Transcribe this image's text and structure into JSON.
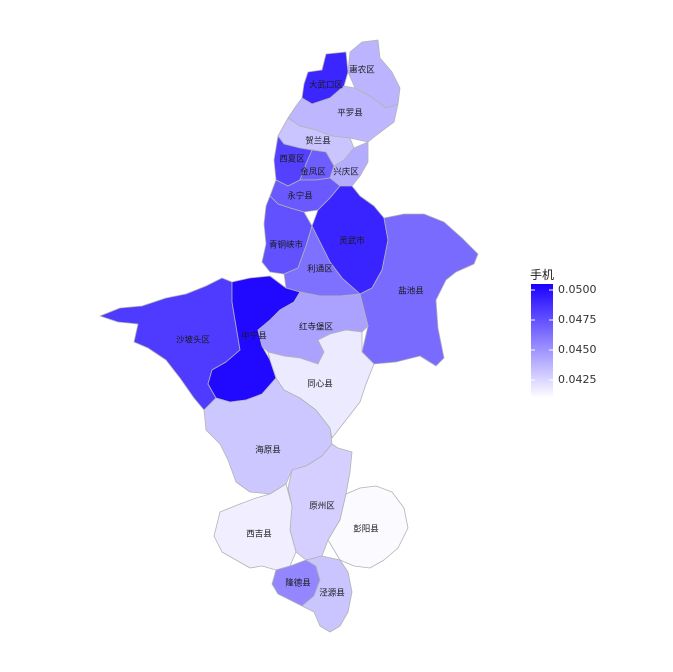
{
  "legend": {
    "title": "手机",
    "ticks": [
      "0.0500",
      "0.0475",
      "0.0450",
      "0.0425"
    ],
    "color_high": "#1a00ff",
    "color_low": "#ffffff"
  },
  "regions": [
    {
      "id": "huinong",
      "name": "惠农区",
      "value": 0.0438
    },
    {
      "id": "dawukou",
      "name": "大武口区",
      "value": 0.0491
    },
    {
      "id": "pingluo",
      "name": "平罗县",
      "value": 0.0437
    },
    {
      "id": "helan",
      "name": "贺兰县",
      "value": 0.0432
    },
    {
      "id": "xixia",
      "name": "西夏区",
      "value": 0.0481
    },
    {
      "id": "jinfeng",
      "name": "金凤区",
      "value": 0.047
    },
    {
      "id": "xingqing",
      "name": "兴庆区",
      "value": 0.0441
    },
    {
      "id": "yongning",
      "name": "永宁县",
      "value": 0.0472
    },
    {
      "id": "qingtongxia",
      "name": "青铜峡市",
      "value": 0.0475
    },
    {
      "id": "lingwu",
      "name": "灵武市",
      "value": 0.0492
    },
    {
      "id": "litong",
      "name": "利通区",
      "value": 0.0463
    },
    {
      "id": "yanchi",
      "name": "盐池县",
      "value": 0.0465
    },
    {
      "id": "shapotou",
      "name": "沙坡头区",
      "value": 0.0483
    },
    {
      "id": "zhongning",
      "name": "中宁县",
      "value": 0.0502
    },
    {
      "id": "hongsipu",
      "name": "红寺堡区",
      "value": 0.0445
    },
    {
      "id": "haiyuan",
      "name": "海原县",
      "value": 0.0431
    },
    {
      "id": "tongxin",
      "name": "同心县",
      "value": 0.0418
    },
    {
      "id": "yuanzhou",
      "name": "原州区",
      "value": 0.0428
    },
    {
      "id": "xiji",
      "name": "西吉县",
      "value": 0.0416
    },
    {
      "id": "pengyang",
      "name": "彭阳县",
      "value": 0.0412
    },
    {
      "id": "longde",
      "name": "隆德县",
      "value": 0.0455
    },
    {
      "id": "jingyuan",
      "name": "泾源县",
      "value": 0.0432
    }
  ]
}
